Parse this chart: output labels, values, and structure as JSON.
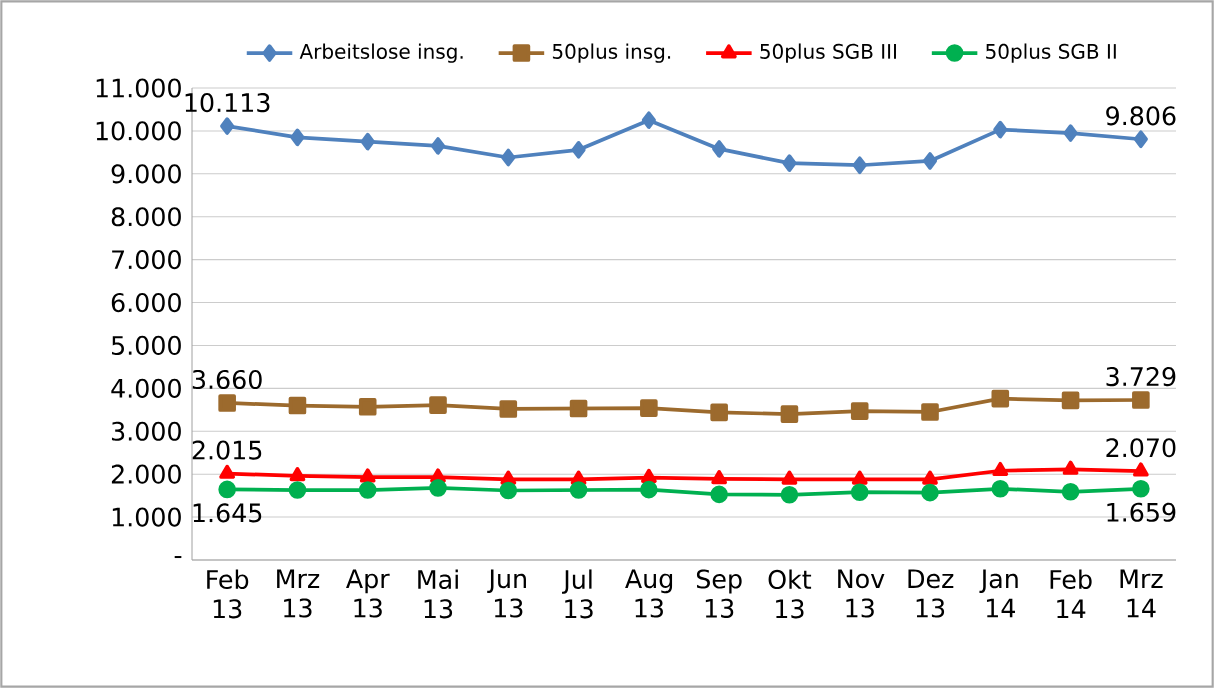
{
  "chart_data": {
    "type": "line",
    "categories": [
      "Feb 13",
      "Mrz 13",
      "Apr 13",
      "Mai 13",
      "Jun 13",
      "Jul 13",
      "Aug 13",
      "Sep 13",
      "Okt 13",
      "Nov 13",
      "Dez 13",
      "Jan 14",
      "Feb 14",
      "Mrz 14"
    ],
    "series": [
      {
        "name": "Arbeitslose insg.",
        "color": "#4f81bd",
        "marker": "diamond",
        "values": [
          10113,
          9850,
          9750,
          9650,
          9380,
          9560,
          10250,
          9580,
          9250,
          9200,
          9300,
          10030,
          9950,
          9806
        ],
        "value_labels": [
          "10.113",
          null,
          null,
          null,
          null,
          null,
          null,
          null,
          null,
          null,
          null,
          null,
          null,
          "9.806"
        ]
      },
      {
        "name": "50plus insg.",
        "color": "#9c6a2d",
        "marker": "square",
        "values": [
          3660,
          3600,
          3570,
          3610,
          3520,
          3530,
          3540,
          3440,
          3400,
          3470,
          3450,
          3760,
          3720,
          3729
        ],
        "value_labels": [
          "3.660",
          null,
          null,
          null,
          null,
          null,
          null,
          null,
          null,
          null,
          null,
          null,
          null,
          "3.729"
        ]
      },
      {
        "name": "50plus SGB III",
        "color": "#ff0000",
        "marker": "triangle",
        "values": [
          2015,
          1960,
          1930,
          1930,
          1880,
          1880,
          1920,
          1890,
          1880,
          1880,
          1880,
          2080,
          2110,
          2070
        ],
        "value_labels": [
          "2.015",
          null,
          null,
          null,
          null,
          null,
          null,
          null,
          null,
          null,
          null,
          null,
          null,
          "2.070"
        ]
      },
      {
        "name": "50plus SGB II",
        "color": "#00b050",
        "marker": "circle",
        "values": [
          1645,
          1630,
          1630,
          1680,
          1620,
          1630,
          1640,
          1530,
          1520,
          1580,
          1570,
          1660,
          1590,
          1659
        ],
        "value_labels": [
          "1.645",
          null,
          null,
          null,
          null,
          null,
          null,
          null,
          null,
          null,
          null,
          null,
          null,
          "1.659"
        ]
      }
    ],
    "ylim": [
      0,
      11000
    ],
    "yticks": [
      {
        "value": 0,
        "label": "-"
      },
      {
        "value": 1000,
        "label": "1.000"
      },
      {
        "value": 2000,
        "label": "2.000"
      },
      {
        "value": 3000,
        "label": "3.000"
      },
      {
        "value": 4000,
        "label": "4.000"
      },
      {
        "value": 5000,
        "label": "5.000"
      },
      {
        "value": 6000,
        "label": "6.000"
      },
      {
        "value": 7000,
        "label": "7.000"
      },
      {
        "value": 8000,
        "label": "8.000"
      },
      {
        "value": 9000,
        "label": "9.000"
      },
      {
        "value": 10000,
        "label": "10.000"
      },
      {
        "value": 11000,
        "label": "11.000"
      }
    ],
    "grid": "y",
    "legend": "top",
    "line_style": "solid"
  }
}
